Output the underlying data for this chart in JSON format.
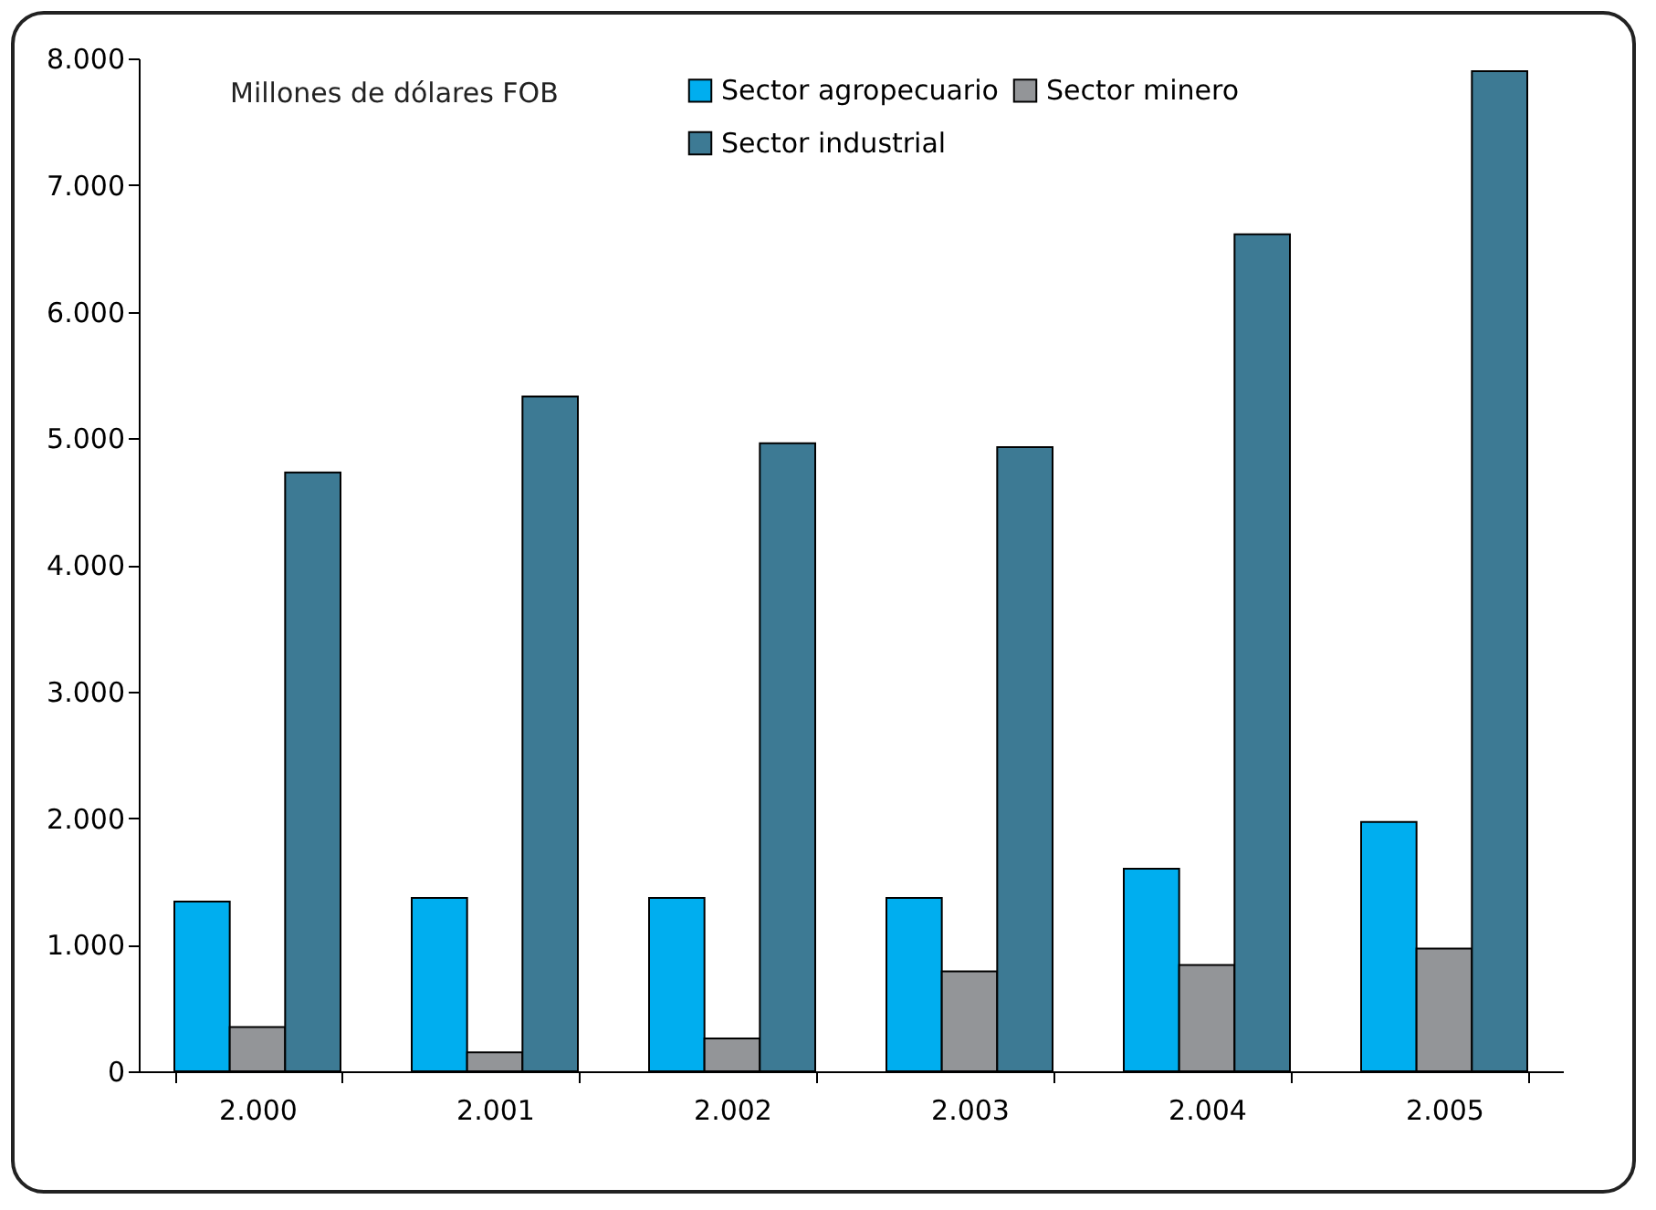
{
  "chart_data": {
    "type": "bar",
    "categories": [
      "2.000",
      "2.001",
      "2.002",
      "2.003",
      "2.004",
      "2.005"
    ],
    "series": [
      {
        "name": "Sector agropecuario",
        "color": "#00aeef",
        "values": [
          1340,
          1370,
          1370,
          1370,
          1600,
          1970
        ]
      },
      {
        "name": "Sector minero",
        "color": "#939598",
        "values": [
          350,
          150,
          260,
          790,
          840,
          970
        ]
      },
      {
        "name": "Sector industrial",
        "color": "#3d7a94",
        "values": [
          4730,
          5330,
          4960,
          4930,
          6610,
          7900
        ]
      }
    ],
    "ylim": [
      0,
      8000
    ],
    "yticks": [
      {
        "value": 0,
        "label": "0"
      },
      {
        "value": 1000,
        "label": "1.000"
      },
      {
        "value": 2000,
        "label": "2.000"
      },
      {
        "value": 3000,
        "label": "3.000"
      },
      {
        "value": 4000,
        "label": "4.000"
      },
      {
        "value": 5000,
        "label": "5.000"
      },
      {
        "value": 6000,
        "label": "6.000"
      },
      {
        "value": 7000,
        "label": "7.000"
      },
      {
        "value": 8000,
        "label": "8.000"
      }
    ],
    "annotations": [
      "Millones de dólares FOB"
    ],
    "legend": "top",
    "grid": false
  }
}
